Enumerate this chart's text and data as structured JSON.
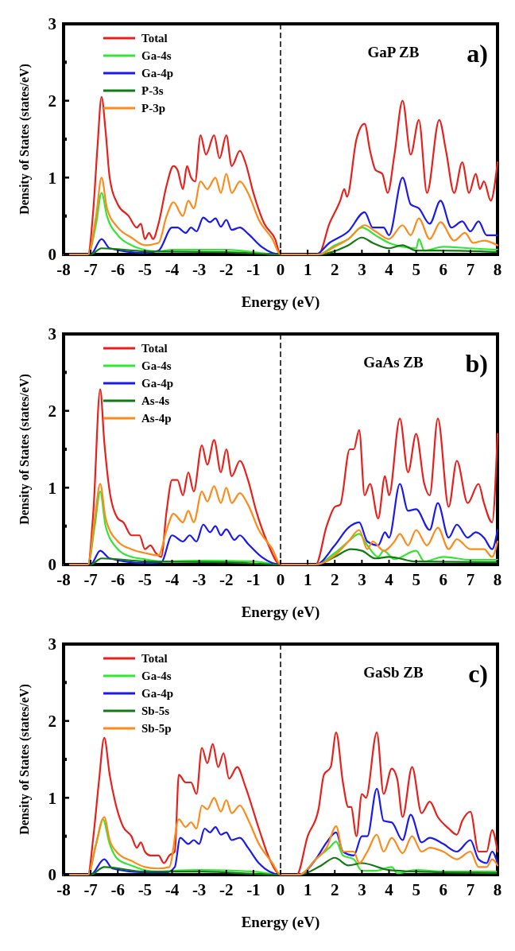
{
  "chart_data": [
    {
      "type": "line",
      "xlabel": "Energy (eV)",
      "ylabel": "Density of States (states/eV)",
      "annotations": [
        "GaP ZB",
        "a)"
      ],
      "xlim": [
        -8,
        8
      ],
      "xticks": [
        -8,
        -7,
        -6,
        -5,
        -4,
        -3,
        -2,
        -1,
        0,
        1,
        2,
        3,
        4,
        5,
        6,
        7,
        8
      ],
      "ylim": [
        0,
        3
      ],
      "yticks": [
        0,
        {
          "value": 0.5,
          "label": null
        },
        1,
        {
          "value": 1.5,
          "label": null
        },
        2,
        {
          "value": 2.5,
          "label": null
        },
        3
      ],
      "grid": false,
      "legend": "top left",
      "ref_lines": [
        {
          "axis": "x",
          "value": 0,
          "color": "#000000",
          "line_style": "dashed"
        }
      ],
      "series": [
        {
          "name": "Total",
          "color": "#e8201c",
          "x": [
            -8,
            -7.1,
            -6.9,
            -6.75,
            -6.6,
            -6.45,
            -6.3,
            -6,
            -5.6,
            -5.3,
            -5.15,
            -5,
            -4.85,
            -4.7,
            -4.5,
            -4.2,
            -3.95,
            -3.8,
            -3.6,
            -3.45,
            -3.3,
            -3.15,
            -2.95,
            -2.75,
            -2.45,
            -2.25,
            -2,
            -1.8,
            -1.5,
            -1.3,
            -1,
            -0.6,
            -0.2,
            0,
            1.4,
            1.8,
            2.2,
            2.35,
            2.45,
            2.8,
            3.1,
            3.3,
            3.5,
            3.75,
            3.95,
            4.2,
            4.5,
            4.8,
            5.1,
            5.4,
            5.85,
            6.1,
            6.4,
            6.7,
            6.95,
            7.2,
            7.35,
            7.5,
            7.75,
            8
          ],
          "values": [
            0,
            0,
            0.6,
            1.4,
            2.05,
            1.6,
            1,
            0.65,
            0.5,
            0.35,
            0.4,
            0.2,
            0.28,
            0.2,
            0.4,
            0.9,
            1.15,
            1.1,
            0.85,
            1.15,
            1,
            0.95,
            1.55,
            1.3,
            1.55,
            1.25,
            1.55,
            1.15,
            1.35,
            1.2,
            0.8,
            0.4,
            0.2,
            0,
            0,
            0.4,
            0.7,
            0.85,
            0.75,
            1.5,
            1.7,
            1.35,
            1.1,
            1.05,
            0.8,
            1.3,
            2,
            1.3,
            1.75,
            0.8,
            1.75,
            1.35,
            0.8,
            1.2,
            0.8,
            1.05,
            0.85,
            0.95,
            0.7,
            1.2
          ]
        },
        {
          "name": "Ga-4s",
          "color": "#33e633",
          "x": [
            -8,
            -7.1,
            -6.8,
            -6.6,
            -6.4,
            -6,
            -5.5,
            -5,
            -4.5,
            -4,
            -2,
            0,
            1.4,
            2,
            2.5,
            3,
            3.5,
            4,
            4.5,
            5,
            5.1,
            5.3,
            6,
            7,
            8
          ],
          "values": [
            0,
            0,
            0.4,
            0.8,
            0.5,
            0.25,
            0.12,
            0.06,
            0.04,
            0.06,
            0.06,
            0,
            0,
            0.12,
            0.2,
            0.35,
            0.25,
            0.15,
            0.1,
            0.08,
            0.2,
            0.05,
            0.1,
            0.08,
            0.06
          ]
        },
        {
          "name": "Ga-4p",
          "color": "#1a1aee",
          "x": [
            -8,
            -7,
            -6.6,
            -6.3,
            -5,
            -4.5,
            -4,
            -3.8,
            -3.5,
            -3.3,
            -3.1,
            -2.85,
            -2.6,
            -2.4,
            -2.2,
            -2,
            -1.8,
            -1.5,
            -1.2,
            -0.7,
            0,
            1.3,
            1.8,
            2.5,
            3.1,
            3.4,
            3.8,
            4,
            4.5,
            4.8,
            5.1,
            5.5,
            5.9,
            6.3,
            6.7,
            7,
            7.3,
            7.6,
            8
          ],
          "values": [
            0,
            0,
            0.2,
            0.08,
            0.02,
            0.05,
            0.35,
            0.35,
            0.28,
            0.35,
            0.3,
            0.48,
            0.42,
            0.47,
            0.36,
            0.45,
            0.32,
            0.35,
            0.27,
            0.1,
            0,
            0,
            0.15,
            0.3,
            0.55,
            0.35,
            0.35,
            0.25,
            1,
            0.65,
            0.6,
            0.4,
            0.7,
            0.35,
            0.43,
            0.3,
            0.43,
            0.25,
            0.25
          ]
        },
        {
          "name": "P-3s",
          "color": "#127a12",
          "x": [
            -8,
            -7,
            -6.6,
            -5,
            -2,
            0,
            1.4,
            2.5,
            3,
            3.4,
            4,
            4.5,
            5,
            6,
            8
          ],
          "values": [
            0,
            0,
            0.08,
            0.04,
            0.03,
            0,
            0,
            0.12,
            0.22,
            0.15,
            0.08,
            0.12,
            0.05,
            0.05,
            0.03
          ]
        },
        {
          "name": "P-3p",
          "color": "#ff8a1a",
          "x": [
            -8,
            -7.1,
            -6.8,
            -6.6,
            -6.4,
            -6,
            -5.5,
            -5,
            -4.5,
            -4.2,
            -3.95,
            -3.6,
            -3.4,
            -3.2,
            -2.95,
            -2.7,
            -2.4,
            -2.2,
            -2,
            -1.8,
            -1.5,
            -1.2,
            -0.8,
            -0.3,
            0,
            1.4,
            2,
            2.5,
            3.1,
            3.5,
            4,
            4.5,
            4.8,
            5.1,
            5.5,
            5.9,
            6.4,
            6.8,
            7.1,
            7.5,
            8
          ],
          "values": [
            0,
            0,
            0.5,
            1,
            0.6,
            0.35,
            0.22,
            0.12,
            0.15,
            0.5,
            0.68,
            0.5,
            0.7,
            0.6,
            0.95,
            0.85,
            1,
            0.8,
            1.05,
            0.8,
            0.95,
            0.8,
            0.45,
            0.2,
            0,
            0,
            0.1,
            0.2,
            0.38,
            0.3,
            0.2,
            0.38,
            0.25,
            0.47,
            0.2,
            0.42,
            0.18,
            0.28,
            0.15,
            0.18,
            0.12
          ]
        }
      ]
    },
    {
      "type": "line",
      "xlabel": "Energy (eV)",
      "ylabel": "Density of States (states/eV)",
      "annotations": [
        "GaAs ZB",
        "b)"
      ],
      "xlim": [
        -8,
        8
      ],
      "xticks": [
        -8,
        -7,
        -6,
        -5,
        -4,
        -3,
        -2,
        -1,
        0,
        1,
        2,
        3,
        4,
        5,
        6,
        7,
        8
      ],
      "ylim": [
        0,
        3
      ],
      "yticks": [
        0,
        {
          "value": 0.5,
          "label": null
        },
        1,
        {
          "value": 1.5,
          "label": null
        },
        2,
        {
          "value": 2.5,
          "label": null
        },
        3
      ],
      "grid": false,
      "legend": "top left",
      "ref_lines": [
        {
          "axis": "x",
          "value": 0,
          "color": "#000000",
          "line_style": "dashed"
        }
      ],
      "series": [
        {
          "name": "Total",
          "color": "#e8201c",
          "x": [
            -8,
            -7.1,
            -6.9,
            -6.65,
            -6.5,
            -6.3,
            -6,
            -5.8,
            -5.5,
            -5.2,
            -5,
            -4.8,
            -4.6,
            -4.4,
            -4.2,
            -4,
            -3.8,
            -3.6,
            -3.4,
            -3.2,
            -2.9,
            -2.7,
            -2.45,
            -2.2,
            -2,
            -1.8,
            -1.5,
            -1.2,
            -0.9,
            -0.5,
            0,
            1.3,
            1.7,
            2,
            2.2,
            2.55,
            2.7,
            2.9,
            3.1,
            3.3,
            3.6,
            3.85,
            4,
            4.4,
            4.7,
            5,
            5.3,
            5.5,
            5.8,
            6.2,
            6.5,
            6.9,
            7.3,
            7.5,
            7.8,
            8
          ],
          "values": [
            0,
            0,
            0.7,
            2.28,
            1.6,
            0.95,
            0.6,
            0.55,
            0.38,
            0.38,
            0.2,
            0.25,
            0.15,
            0.1,
            0.7,
            1.1,
            1.1,
            0.9,
            1.2,
            0.95,
            1.55,
            1.3,
            1.62,
            1.2,
            1.5,
            1.15,
            1.35,
            1.1,
            0.7,
            0.3,
            0,
            0,
            0.5,
            0.75,
            0.78,
            1.5,
            1.5,
            1.75,
            0.9,
            1.05,
            0.6,
            1.15,
            0.9,
            1.9,
            1.2,
            1.7,
            1.05,
            0.9,
            1.9,
            0.75,
            1.35,
            0.8,
            1.05,
            0.8,
            0.55,
            1.7
          ]
        },
        {
          "name": "Ga-4s",
          "color": "#33e633",
          "x": [
            -8,
            -7.1,
            -6.85,
            -6.65,
            -6.45,
            -6,
            -5.5,
            -5,
            -4.4,
            -3,
            -1,
            0,
            1.3,
            2,
            2.5,
            2.9,
            3.2,
            3.6,
            3.8,
            4.2,
            5,
            5.3,
            6,
            7,
            8
          ],
          "values": [
            0,
            0,
            0.5,
            0.95,
            0.5,
            0.2,
            0.1,
            0.07,
            0.04,
            0.05,
            0.04,
            0,
            0,
            0.15,
            0.3,
            0.4,
            0.25,
            0.1,
            0.18,
            0.07,
            0.18,
            0.04,
            0.1,
            0.06,
            0.06
          ]
        },
        {
          "name": "Ga-4p",
          "color": "#1a1aee",
          "x": [
            -8,
            -7,
            -6.65,
            -6.3,
            -5,
            -4.4,
            -4,
            -3.6,
            -3.35,
            -3.1,
            -2.85,
            -2.6,
            -2.4,
            -2.2,
            -2,
            -1.7,
            -1.5,
            -1.2,
            -0.7,
            0,
            1.3,
            2,
            2.5,
            2.9,
            3.2,
            3.6,
            3.85,
            4,
            4.4,
            4.7,
            5,
            5.5,
            5.8,
            6.2,
            6.5,
            6.9,
            7.2,
            7.5,
            7.8,
            8
          ],
          "values": [
            0,
            0,
            0.18,
            0.08,
            0.02,
            0.03,
            0.38,
            0.3,
            0.38,
            0.3,
            0.52,
            0.42,
            0.5,
            0.38,
            0.46,
            0.32,
            0.38,
            0.27,
            0.1,
            0,
            0,
            0.25,
            0.48,
            0.55,
            0.3,
            0.25,
            0.42,
            0.35,
            1.05,
            0.7,
            0.72,
            0.45,
            0.8,
            0.35,
            0.52,
            0.35,
            0.42,
            0.35,
            0.2,
            0.45
          ]
        },
        {
          "name": "As-4s",
          "color": "#127a12",
          "x": [
            -8,
            -7,
            -6.6,
            -5,
            -2,
            0,
            1.3,
            2,
            2.6,
            3,
            3.5,
            4,
            5,
            8
          ],
          "values": [
            0,
            0,
            0.08,
            0.04,
            0.03,
            0,
            0,
            0.1,
            0.2,
            0.18,
            0.08,
            0.1,
            0.04,
            0.03
          ]
        },
        {
          "name": "As-4p",
          "color": "#ff8a1a",
          "x": [
            -8,
            -7.1,
            -6.85,
            -6.65,
            -6.45,
            -6,
            -5.5,
            -5,
            -4.5,
            -4.2,
            -3.95,
            -3.6,
            -3.4,
            -3.2,
            -2.9,
            -2.7,
            -2.45,
            -2.2,
            -2,
            -1.8,
            -1.5,
            -1.2,
            -0.8,
            -0.3,
            0,
            1.3,
            2,
            2.5,
            2.9,
            3.2,
            3.4,
            3.8,
            4.2,
            4.4,
            4.7,
            5,
            5.4,
            5.8,
            6.2,
            6.5,
            7,
            7.5,
            7.8,
            8
          ],
          "values": [
            0,
            0,
            0.6,
            1.05,
            0.6,
            0.3,
            0.2,
            0.15,
            0.12,
            0.45,
            0.66,
            0.55,
            0.7,
            0.55,
            0.95,
            0.82,
            1.02,
            0.8,
            1,
            0.8,
            0.93,
            0.78,
            0.45,
            0.2,
            0,
            0,
            0.12,
            0.3,
            0.45,
            0.2,
            0.3,
            0.18,
            0.3,
            0.4,
            0.25,
            0.45,
            0.25,
            0.48,
            0.2,
            0.33,
            0.2,
            0.2,
            0.1,
            0.3
          ]
        }
      ]
    },
    {
      "type": "line",
      "xlabel": "Energy (eV)",
      "ylabel": "Density of States (states/eV)",
      "annotations": [
        "GaSb ZB",
        "c)"
      ],
      "xlim": [
        -8,
        8
      ],
      "xticks": [
        -8,
        -7,
        -6,
        -5,
        -4,
        -3,
        -2,
        -1,
        0,
        1,
        2,
        3,
        4,
        5,
        6,
        7,
        8
      ],
      "ylim": [
        0,
        3
      ],
      "yticks": [
        0,
        {
          "value": 0.5,
          "label": null
        },
        1,
        {
          "value": 1.5,
          "label": null
        },
        2,
        {
          "value": 2.5,
          "label": null
        },
        3
      ],
      "grid": false,
      "legend": "top left",
      "ref_lines": [
        {
          "axis": "x",
          "value": 0,
          "color": "#000000",
          "line_style": "dashed"
        }
      ],
      "series": [
        {
          "name": "Total",
          "color": "#e8201c",
          "x": [
            -8,
            -7.1,
            -6.9,
            -6.7,
            -6.5,
            -6.3,
            -6.1,
            -5.8,
            -5.5,
            -5.3,
            -5.15,
            -5,
            -4.8,
            -4.5,
            -4.3,
            -4.1,
            -3.9,
            -3.75,
            -3.5,
            -3.3,
            -3.1,
            -2.9,
            -2.7,
            -2.5,
            -2.3,
            -2.1,
            -1.9,
            -1.6,
            -1.3,
            -0.8,
            -0.4,
            0,
            0.6,
            1,
            1.4,
            1.6,
            1.85,
            2.05,
            2.3,
            2.5,
            2.6,
            2.8,
            3,
            3.15,
            3.55,
            3.8,
            4.1,
            4.3,
            4.5,
            4.85,
            5.2,
            5.5,
            5.8,
            6.2,
            6.5,
            6.7,
            7,
            7.3,
            7.6,
            7.8,
            8
          ],
          "values": [
            0,
            0,
            0.5,
            1.2,
            1.78,
            1.3,
            0.95,
            0.62,
            0.5,
            0.35,
            0.42,
            0.3,
            0.25,
            0.25,
            0.15,
            0.25,
            0.3,
            1.3,
            1.2,
            1.2,
            1.05,
            1.65,
            1.45,
            1.7,
            1.4,
            1.58,
            1.25,
            1.4,
            1.15,
            0.6,
            0.2,
            0,
            0,
            0.5,
            0.85,
            1.3,
            1.4,
            1.85,
            1.2,
            0.88,
            0.88,
            0.5,
            1.05,
            1,
            1.85,
            1.05,
            1.38,
            1.25,
            0.75,
            1.4,
            0.8,
            0.95,
            0.75,
            0.6,
            0.52,
            0.7,
            0.82,
            0.3,
            0.3,
            0.58,
            0.3
          ]
        },
        {
          "name": "Ga-4s",
          "color": "#33e633",
          "x": [
            -8,
            -7.1,
            -6.8,
            -6.55,
            -6.3,
            -6,
            -5.5,
            -5,
            -4.5,
            -4,
            -3,
            -1,
            0,
            0.7,
            1.3,
            1.8,
            2.05,
            2.3,
            2.7,
            3,
            3.5,
            4.1,
            4.3,
            5,
            6,
            8
          ],
          "values": [
            0,
            0,
            0.4,
            0.72,
            0.4,
            0.2,
            0.12,
            0.06,
            0.04,
            0.05,
            0.06,
            0.04,
            0,
            0,
            0.2,
            0.35,
            0.43,
            0.25,
            0.2,
            0.05,
            0.05,
            0.1,
            0.02,
            0.06,
            0.04,
            0.04
          ]
        },
        {
          "name": "Ga-4p",
          "color": "#1a1aee",
          "x": [
            -8,
            -7,
            -6.5,
            -6.2,
            -5,
            -4.2,
            -3.9,
            -3.7,
            -3.4,
            -3.2,
            -3,
            -2.8,
            -2.6,
            -2.4,
            -2.2,
            -2,
            -1.8,
            -1.5,
            -1.2,
            -0.8,
            0,
            0.7,
            1.3,
            1.7,
            2.05,
            2.3,
            2.7,
            3,
            3.2,
            3.55,
            3.8,
            4.1,
            4.5,
            4.8,
            5.2,
            5.5,
            6,
            6.5,
            7,
            7.3,
            7.6,
            7.8,
            8
          ],
          "values": [
            0,
            0,
            0.2,
            0.08,
            0.03,
            0.03,
            0.1,
            0.48,
            0.4,
            0.45,
            0.4,
            0.6,
            0.55,
            0.62,
            0.52,
            0.55,
            0.45,
            0.48,
            0.35,
            0.15,
            0,
            0,
            0.2,
            0.42,
            0.55,
            0.3,
            0.25,
            0.5,
            0.5,
            1.12,
            0.7,
            0.68,
            0.45,
            0.78,
            0.42,
            0.48,
            0.4,
            0.3,
            0.45,
            0.2,
            0.15,
            0.3,
            0.15
          ]
        },
        {
          "name": "Sb-5s",
          "color": "#127a12",
          "x": [
            -8,
            -7,
            -6.5,
            -5,
            -3,
            0,
            0.7,
            1.5,
            2,
            2.5,
            3,
            4,
            5,
            8
          ],
          "values": [
            0,
            0,
            0.1,
            0.04,
            0.04,
            0,
            0,
            0.12,
            0.22,
            0.12,
            0.15,
            0.06,
            0.04,
            0.02
          ]
        },
        {
          "name": "Sb-5p",
          "color": "#ff8a1a",
          "x": [
            -8,
            -7.1,
            -6.8,
            -6.5,
            -6.3,
            -6,
            -5.5,
            -5,
            -4.5,
            -4.1,
            -3.75,
            -3.5,
            -3.3,
            -3.1,
            -2.9,
            -2.7,
            -2.45,
            -2.2,
            -2,
            -1.8,
            -1.5,
            -1.2,
            -0.8,
            -0.3,
            0,
            0.7,
            1.3,
            1.7,
            2.05,
            2.3,
            2.7,
            2.9,
            3.2,
            3.55,
            3.8,
            4.1,
            4.5,
            4.85,
            5.2,
            5.5,
            6,
            6.5,
            7,
            7.3,
            7.6,
            7.8,
            8
          ],
          "values": [
            0,
            0,
            0.4,
            0.75,
            0.45,
            0.28,
            0.18,
            0.1,
            0.08,
            0.1,
            0.72,
            0.62,
            0.68,
            0.6,
            0.9,
            0.85,
            1,
            0.82,
            0.97,
            0.8,
            0.9,
            0.72,
            0.4,
            0.15,
            0,
            0,
            0.2,
            0.35,
            0.63,
            0.3,
            0.3,
            0.15,
            0.3,
            0.52,
            0.3,
            0.48,
            0.28,
            0.5,
            0.3,
            0.35,
            0.3,
            0.2,
            0.3,
            0.1,
            0.1,
            0.2,
            0.12
          ]
        }
      ]
    }
  ]
}
